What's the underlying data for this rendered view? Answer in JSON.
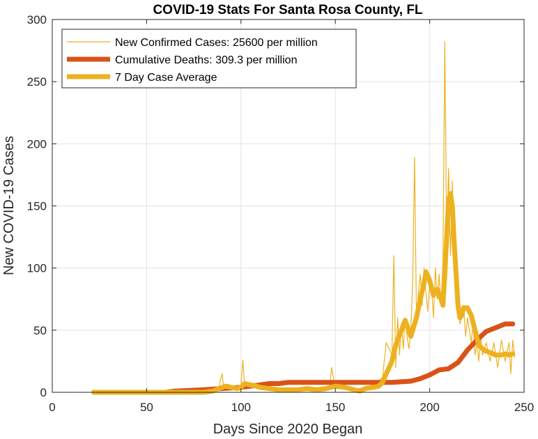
{
  "chart_data": {
    "type": "line",
    "title": "COVID-19 Stats For Santa Rosa County, FL",
    "xlabel": "Days Since 2020 Began",
    "ylabel": "New COVID-19 Cases",
    "xlim": [
      0,
      250
    ],
    "ylim": [
      0,
      300
    ],
    "xticks": [
      0,
      50,
      100,
      150,
      200,
      250
    ],
    "yticks": [
      0,
      50,
      100,
      150,
      200,
      250,
      300
    ],
    "grid": true,
    "legend_position": "top-left",
    "series": [
      {
        "name": "New Confirmed Cases: 25600 per million",
        "color": "#EDB120",
        "style": "thin",
        "x": [
          22,
          30,
          40,
          50,
          60,
          70,
          80,
          85,
          88,
          90,
          91,
          92,
          95,
          98,
          100,
          101,
          102,
          104,
          106,
          108,
          110,
          112,
          115,
          118,
          120,
          125,
          130,
          135,
          140,
          145,
          147,
          148,
          150,
          155,
          160,
          165,
          170,
          172,
          175,
          177,
          180,
          181,
          182,
          183,
          184,
          185,
          186,
          187,
          188,
          189,
          190,
          191,
          192,
          193,
          194,
          195,
          196,
          197,
          198,
          199,
          200,
          201,
          202,
          203,
          204,
          205,
          206,
          207,
          208,
          209,
          210,
          211,
          212,
          213,
          214,
          215,
          216,
          217,
          218,
          219,
          220,
          221,
          222,
          223,
          224,
          225,
          226,
          227,
          228,
          229,
          230,
          232,
          234,
          236,
          238,
          240,
          242,
          243,
          244,
          245
        ],
        "values": [
          0,
          0,
          0,
          0,
          0,
          0,
          0,
          1,
          3,
          15,
          2,
          6,
          4,
          5,
          5,
          26,
          3,
          6,
          4,
          5,
          3,
          4,
          2,
          3,
          2,
          2,
          3,
          2,
          3,
          4,
          3,
          20,
          3,
          3,
          2,
          4,
          6,
          8,
          12,
          40,
          30,
          110,
          20,
          60,
          30,
          55,
          35,
          60,
          45,
          35,
          50,
          90,
          189,
          60,
          80,
          95,
          70,
          100,
          80,
          65,
          90,
          85,
          60,
          100,
          75,
          95,
          70,
          105,
          282,
          120,
          180,
          110,
          170,
          100,
          80,
          70,
          55,
          60,
          70,
          45,
          60,
          50,
          40,
          55,
          30,
          40,
          25,
          45,
          30,
          35,
          40,
          25,
          40,
          20,
          42,
          25,
          40,
          15,
          42,
          28
        ],
        "data_labels": []
      },
      {
        "name": "Cumulative Deaths: 309.3 per million",
        "color": "#D95319",
        "style": "thick",
        "x": [
          22,
          60,
          65,
          80,
          90,
          100,
          105,
          110,
          115,
          120,
          125,
          130,
          140,
          150,
          160,
          170,
          180,
          190,
          195,
          200,
          205,
          210,
          215,
          220,
          225,
          230,
          235,
          240,
          244
        ],
        "values": [
          0,
          0,
          1,
          2,
          3,
          4,
          5,
          6,
          7,
          7,
          8,
          8,
          8,
          8,
          8,
          8,
          8,
          9,
          11,
          14,
          18,
          19,
          24,
          34,
          42,
          49,
          52,
          55,
          55
        ]
      },
      {
        "name": "7 Day Case Average",
        "color": "#EDB120",
        "style": "thick",
        "x": [
          22,
          40,
          60,
          80,
          85,
          90,
          92,
          95,
          98,
          100,
          102,
          105,
          108,
          110,
          115,
          120,
          125,
          130,
          135,
          140,
          145,
          150,
          155,
          160,
          163,
          166,
          170,
          173,
          175,
          177,
          180,
          182,
          185,
          187,
          190,
          192,
          193,
          195,
          197,
          198,
          200,
          202,
          204,
          206,
          207,
          208,
          209,
          210,
          211,
          212,
          213,
          214,
          215,
          216,
          217,
          218,
          220,
          222,
          224,
          226,
          228,
          230,
          232,
          235,
          238,
          240,
          242,
          244
        ],
        "values": [
          0,
          0,
          0,
          0,
          1,
          4,
          5,
          4,
          3,
          4,
          7,
          6,
          5,
          4,
          3,
          2,
          2,
          2,
          3,
          2,
          3,
          5,
          4,
          2,
          1,
          3,
          4,
          5,
          8,
          15,
          25,
          38,
          50,
          58,
          45,
          55,
          60,
          75,
          88,
          97,
          90,
          78,
          83,
          75,
          70,
          95,
          125,
          155,
          160,
          150,
          120,
          95,
          70,
          60,
          62,
          68,
          68,
          62,
          50,
          38,
          35,
          33,
          32,
          30,
          30,
          31,
          30,
          31
        ]
      }
    ]
  }
}
